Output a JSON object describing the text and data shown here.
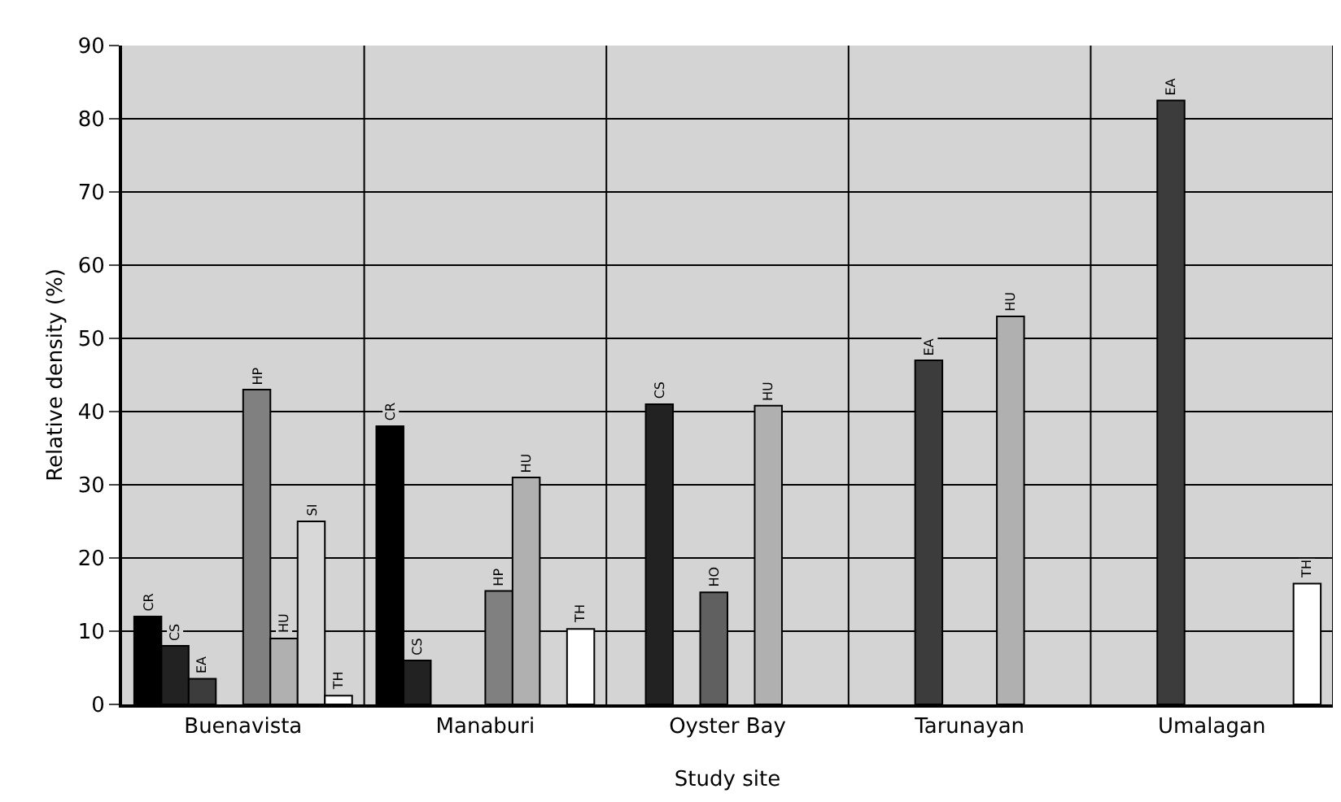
{
  "chart_data": {
    "type": "bar",
    "xlabel": "Study site",
    "ylabel": "Relative density (%)",
    "categories": [
      "Buenavista",
      "Manaburi",
      "Oyster Bay",
      "Tarunayan",
      "Umalagan"
    ],
    "series": [
      {
        "name": "CR",
        "color": "#000000",
        "values": [
          12,
          38,
          null,
          null,
          null
        ]
      },
      {
        "name": "CS",
        "color": "#222222",
        "values": [
          8,
          6,
          41,
          null,
          null
        ]
      },
      {
        "name": "EA",
        "color": "#3c3c3c",
        "values": [
          3.5,
          null,
          null,
          47,
          82.5
        ]
      },
      {
        "name": "HO",
        "color": "#606060",
        "values": [
          null,
          null,
          15.3,
          null,
          null
        ]
      },
      {
        "name": "HP",
        "color": "#808080",
        "values": [
          43,
          15.5,
          null,
          null,
          null
        ]
      },
      {
        "name": "HU",
        "color": "#b0b0b0",
        "values": [
          9,
          31,
          40.8,
          53,
          null
        ]
      },
      {
        "name": "SI",
        "color": "#d8d8d8",
        "values": [
          25,
          null,
          null,
          null,
          null
        ]
      },
      {
        "name": "TH",
        "color": "#ffffff",
        "values": [
          1.2,
          10.3,
          null,
          null,
          16.5
        ]
      }
    ],
    "ylim": [
      0,
      90
    ],
    "yticks": [
      0,
      10,
      20,
      30,
      40,
      50,
      60,
      70,
      80,
      90
    ],
    "grid": true,
    "legend": false
  }
}
